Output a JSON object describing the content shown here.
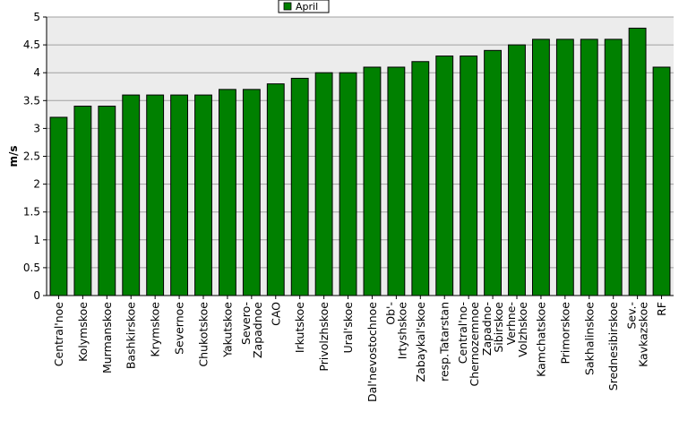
{
  "chart_data": {
    "type": "bar",
    "ylabel": "m/s",
    "ylim": [
      0,
      5
    ],
    "yticks": [
      "0",
      "0.5",
      "1",
      "1.5",
      "2",
      "2.5",
      "3",
      "3.5",
      "4",
      "4.5",
      "5"
    ],
    "grid": true,
    "legend_position": "top-center",
    "categories": [
      [
        "Central'noe"
      ],
      [
        "Kolymskoe"
      ],
      [
        "Murmanskoe"
      ],
      [
        "Bashkirskoe"
      ],
      [
        "Krymskoe"
      ],
      [
        "Severnoe"
      ],
      [
        "Chukotskoe"
      ],
      [
        "Yakutskoe"
      ],
      [
        "Severo-",
        "Zapadnoe"
      ],
      [
        "CAO"
      ],
      [
        "Irkutskoe"
      ],
      [
        "Privolzhskoe"
      ],
      [
        "Ural'skoe"
      ],
      [
        "Dal'nevostochnoe"
      ],
      [
        "Ob'-",
        "Irtyshskoe"
      ],
      [
        "Zabaykal'skoe"
      ],
      [
        "resp.Tatarstan"
      ],
      [
        "Central'no-",
        "Chernozemnoe"
      ],
      [
        "Zapadno-",
        "Sibirskoe"
      ],
      [
        "Verhne-",
        "Volzhskoe"
      ],
      [
        "Kamchatskoe"
      ],
      [
        "Primorskoe"
      ],
      [
        "Sakhalinskoe"
      ],
      [
        "Srednesibirskoe"
      ],
      [
        "Sev.-",
        "Kavkazskoe"
      ],
      [
        "RF"
      ]
    ],
    "series": [
      {
        "name": "April",
        "color": "#008000",
        "values": [
          3.2,
          3.4,
          3.4,
          3.6,
          3.6,
          3.6,
          3.6,
          3.7,
          3.7,
          3.8,
          3.9,
          4.0,
          4.0,
          4.1,
          4.1,
          4.2,
          4.3,
          4.3,
          4.4,
          4.5,
          4.6,
          4.6,
          4.6,
          4.6,
          4.8,
          4.1
        ]
      }
    ]
  }
}
